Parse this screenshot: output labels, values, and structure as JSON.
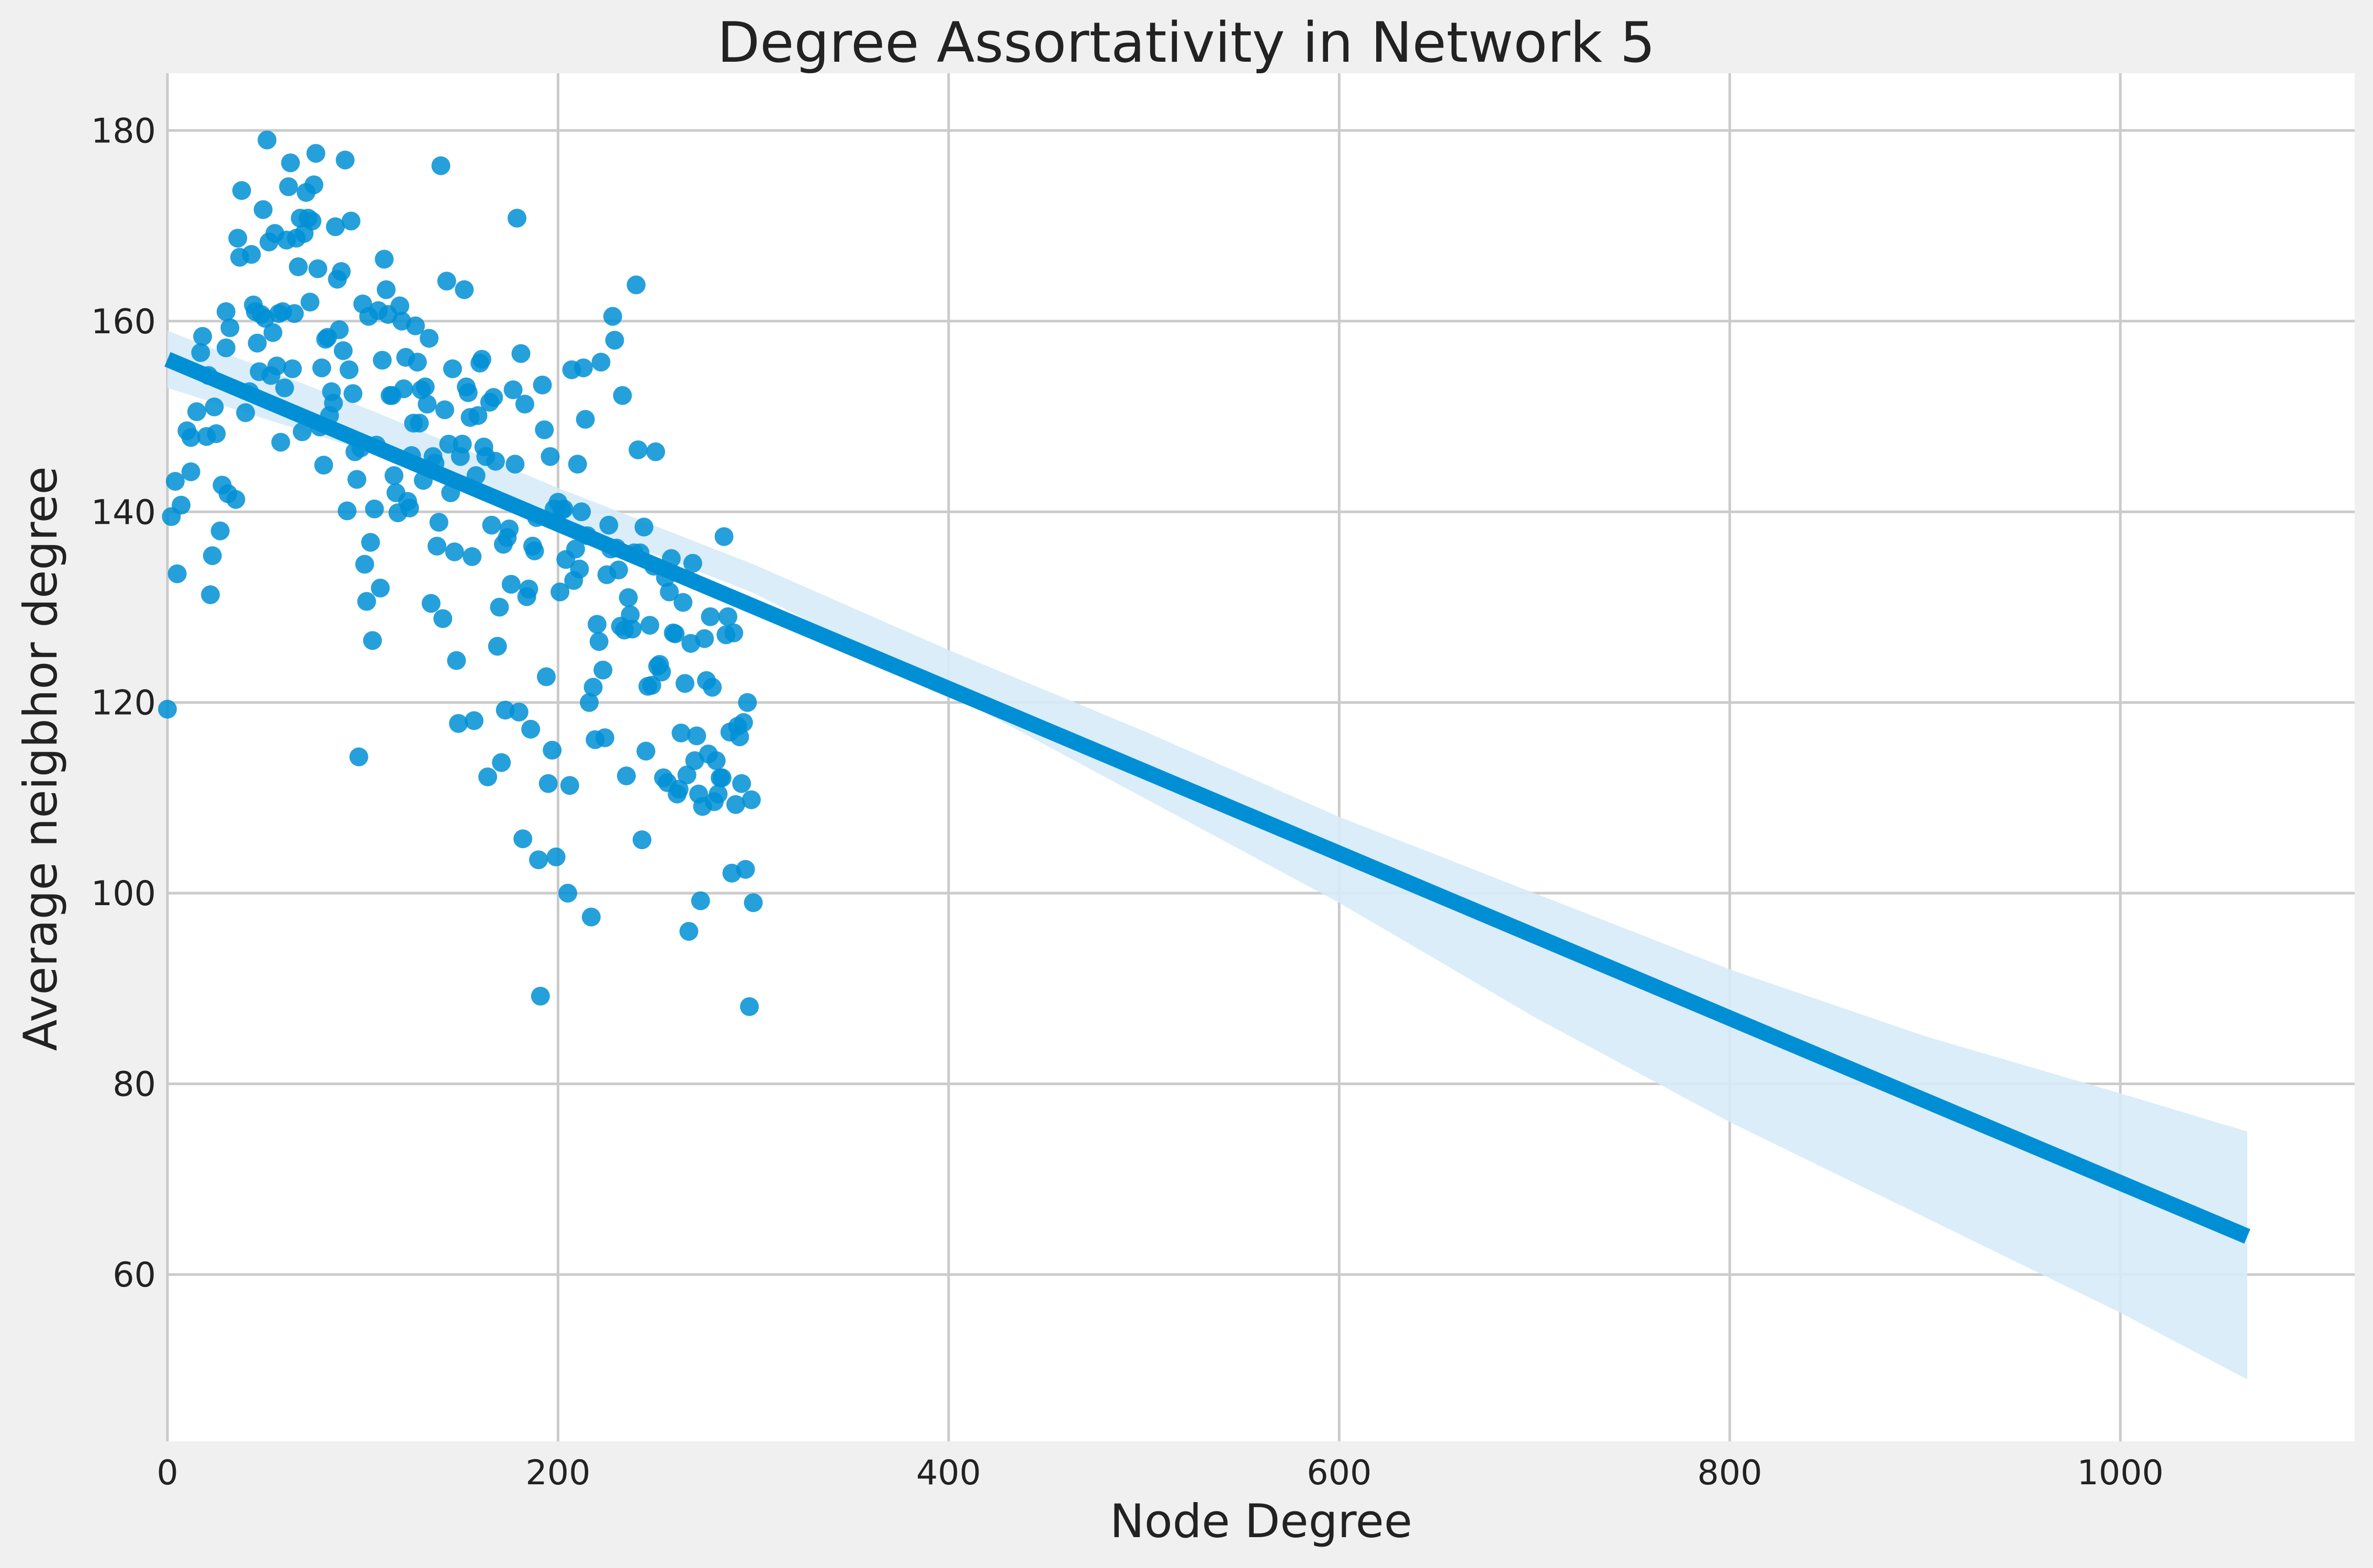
{
  "chart_data": {
    "type": "scatter",
    "title": "Degree Assortativity in Network 5",
    "xlabel": "Node Degree",
    "ylabel": "Average neigbhor degree",
    "xlim": [
      0,
      1120
    ],
    "ylim": [
      42.5,
      186
    ],
    "xticks": [
      0,
      200,
      400,
      600,
      800,
      1000
    ],
    "yticks": [
      60,
      80,
      100,
      120,
      140,
      160,
      180
    ],
    "grid": true,
    "legend": "none",
    "colors": {
      "points": "#008fd5",
      "line": "#008fd5",
      "band": "#d6ebf7",
      "background": "#f0f0f0",
      "plot_background": "#ffffff",
      "grid": "#cbcbcb"
    },
    "regression": {
      "x": [
        0,
        1065
      ],
      "y": [
        156,
        64
      ],
      "ci_upper": [
        [
          0,
          159
        ],
        [
          100,
          151
        ],
        [
          200,
          142.5
        ],
        [
          300,
          134.5
        ],
        [
          400,
          125.5
        ],
        [
          500,
          117
        ],
        [
          600,
          108
        ],
        [
          700,
          100
        ],
        [
          800,
          92
        ],
        [
          900,
          85
        ],
        [
          1000,
          79
        ],
        [
          1065,
          75
        ]
      ],
      "ci_lower": [
        [
          0,
          153
        ],
        [
          100,
          146.5
        ],
        [
          200,
          139.5
        ],
        [
          300,
          131.5
        ],
        [
          400,
          121
        ],
        [
          500,
          110
        ],
        [
          600,
          99
        ],
        [
          700,
          87
        ],
        [
          800,
          76
        ],
        [
          900,
          66
        ],
        [
          1000,
          56
        ],
        [
          1065,
          49
        ]
      ]
    },
    "points": [
      [
        0,
        119.3
      ],
      [
        2,
        139.5
      ],
      [
        4,
        143.2
      ],
      [
        5,
        133.5
      ],
      [
        7,
        140.7
      ],
      [
        10,
        148.5
      ],
      [
        12,
        144.2
      ],
      [
        12,
        147.8
      ],
      [
        15,
        150.5
      ],
      [
        17,
        156.7
      ],
      [
        18,
        158.4
      ],
      [
        20,
        147.9
      ],
      [
        21,
        154.3
      ],
      [
        22,
        131.3
      ],
      [
        23,
        135.4
      ],
      [
        24,
        151
      ],
      [
        25,
        148.2
      ],
      [
        27,
        138
      ],
      [
        28,
        142.8
      ],
      [
        30,
        157.2
      ],
      [
        30,
        161
      ],
      [
        31,
        141.9
      ],
      [
        32,
        159.3
      ],
      [
        35,
        141.3
      ],
      [
        36,
        168.7
      ],
      [
        37,
        166.7
      ],
      [
        38,
        173.7
      ],
      [
        40,
        150.4
      ],
      [
        42,
        152.6
      ],
      [
        43,
        167
      ],
      [
        44,
        161.7
      ],
      [
        45,
        161
      ],
      [
        46,
        157.7
      ],
      [
        47,
        154.7
      ],
      [
        48,
        160.7
      ],
      [
        49,
        171.7
      ],
      [
        50,
        160.3
      ],
      [
        51,
        179
      ],
      [
        52,
        168.3
      ],
      [
        53,
        154.3
      ],
      [
        54,
        158.8
      ],
      [
        55,
        169.2
      ],
      [
        56,
        155.3
      ],
      [
        57,
        160.8
      ],
      [
        58,
        147.3
      ],
      [
        59,
        161
      ],
      [
        60,
        153
      ],
      [
        61,
        168.5
      ],
      [
        62,
        174.1
      ],
      [
        63,
        176.6
      ],
      [
        64,
        155
      ],
      [
        65,
        160.8
      ],
      [
        66,
        168.7
      ],
      [
        67,
        165.7
      ],
      [
        68,
        170.8
      ],
      [
        69,
        148.4
      ],
      [
        70,
        169.2
      ],
      [
        71,
        173.5
      ],
      [
        72,
        170.8
      ],
      [
        73,
        162
      ],
      [
        74,
        170.5
      ],
      [
        75,
        174.3
      ],
      [
        76,
        177.6
      ],
      [
        77,
        165.5
      ],
      [
        78,
        148.9
      ],
      [
        79,
        155.1
      ],
      [
        80,
        144.9
      ],
      [
        81,
        158.1
      ],
      [
        82,
        158.3
      ],
      [
        83,
        150.1
      ],
      [
        84,
        152.6
      ],
      [
        85,
        151.4
      ],
      [
        86,
        169.9
      ],
      [
        87,
        164.4
      ],
      [
        88,
        159.1
      ],
      [
        89,
        165.2
      ],
      [
        90,
        156.9
      ],
      [
        91,
        176.9
      ],
      [
        92,
        140.1
      ],
      [
        93,
        154.9
      ],
      [
        94,
        170.5
      ],
      [
        95,
        152.4
      ],
      [
        96,
        146.3
      ],
      [
        97,
        143.4
      ],
      [
        98,
        114.3
      ],
      [
        99,
        146.7
      ],
      [
        100,
        161.8
      ],
      [
        101,
        134.5
      ],
      [
        102,
        130.6
      ],
      [
        103,
        160.5
      ],
      [
        104,
        136.8
      ],
      [
        105,
        126.5
      ],
      [
        106,
        140.3
      ],
      [
        107,
        147
      ],
      [
        108,
        161.1
      ],
      [
        109,
        132
      ],
      [
        110,
        155.9
      ],
      [
        111,
        166.5
      ],
      [
        112,
        163.3
      ],
      [
        113,
        160.7
      ],
      [
        114,
        152.2
      ],
      [
        115,
        152.2
      ],
      [
        116,
        143.8
      ],
      [
        117,
        142
      ],
      [
        118,
        139.9
      ],
      [
        119,
        161.6
      ],
      [
        120,
        160
      ],
      [
        121,
        152.9
      ],
      [
        122,
        156.2
      ],
      [
        123,
        141.1
      ],
      [
        124,
        140.4
      ],
      [
        125,
        145.9
      ],
      [
        126,
        149.3
      ],
      [
        127,
        159.5
      ],
      [
        128,
        155.7
      ],
      [
        129,
        149.3
      ],
      [
        130,
        152.8
      ],
      [
        131,
        143.3
      ],
      [
        132,
        153.1
      ],
      [
        133,
        151.3
      ],
      [
        134,
        158.2
      ],
      [
        135,
        130.4
      ],
      [
        136,
        145.8
      ],
      [
        137,
        145.1
      ],
      [
        138,
        136.4
      ],
      [
        139,
        138.9
      ],
      [
        140,
        176.3
      ],
      [
        141,
        128.8
      ],
      [
        142,
        150.7
      ],
      [
        143,
        164.2
      ],
      [
        144,
        147.1
      ],
      [
        145,
        142
      ],
      [
        146,
        155
      ],
      [
        147,
        135.8
      ],
      [
        148,
        124.4
      ],
      [
        149,
        117.8
      ],
      [
        150,
        145.8
      ],
      [
        151,
        147.1
      ],
      [
        152,
        163.3
      ],
      [
        153,
        153.1
      ],
      [
        154,
        152.5
      ],
      [
        155,
        149.9
      ],
      [
        156,
        135.3
      ],
      [
        157,
        118.1
      ],
      [
        158,
        143.8
      ],
      [
        159,
        150.1
      ],
      [
        160,
        155.6
      ],
      [
        161,
        156
      ],
      [
        162,
        146.8
      ],
      [
        163,
        145.8
      ],
      [
        164,
        112.2
      ],
      [
        165,
        151.5
      ],
      [
        166,
        138.6
      ],
      [
        167,
        152
      ],
      [
        168,
        145.3
      ],
      [
        169,
        125.9
      ],
      [
        170,
        130
      ],
      [
        171,
        113.7
      ],
      [
        172,
        136.6
      ],
      [
        173,
        119.2
      ],
      [
        174,
        137.3
      ],
      [
        175,
        138.2
      ],
      [
        176,
        132.4
      ],
      [
        177,
        152.8
      ],
      [
        178,
        145
      ],
      [
        179,
        170.8
      ],
      [
        180,
        119
      ],
      [
        181,
        156.6
      ],
      [
        182,
        105.7
      ],
      [
        183,
        151.3
      ],
      [
        184,
        131.1
      ],
      [
        185,
        131.9
      ],
      [
        186,
        117.2
      ],
      [
        187,
        136.4
      ],
      [
        188,
        135.9
      ],
      [
        189,
        139.4
      ],
      [
        190,
        103.5
      ],
      [
        191,
        89.2
      ],
      [
        192,
        153.3
      ],
      [
        193,
        148.6
      ],
      [
        194,
        122.7
      ],
      [
        195,
        111.5
      ],
      [
        196,
        145.8
      ],
      [
        197,
        115
      ],
      [
        198,
        140.3
      ],
      [
        199,
        103.8
      ],
      [
        200,
        141
      ],
      [
        201,
        131.6
      ],
      [
        202,
        140.2
      ],
      [
        203,
        140.3
      ],
      [
        204,
        135
      ],
      [
        205,
        100
      ],
      [
        206,
        111.3
      ],
      [
        207,
        154.9
      ],
      [
        208,
        132.8
      ],
      [
        209,
        136.1
      ],
      [
        210,
        145
      ],
      [
        211,
        134
      ],
      [
        212,
        140
      ],
      [
        213,
        155.1
      ],
      [
        214,
        149.7
      ],
      [
        215,
        137.5
      ],
      [
        216,
        120
      ],
      [
        217,
        97.5
      ],
      [
        218,
        121.6
      ],
      [
        219,
        116.1
      ],
      [
        220,
        128.2
      ],
      [
        221,
        126.4
      ],
      [
        222,
        155.7
      ],
      [
        223,
        123.4
      ],
      [
        224,
        116.3
      ],
      [
        225,
        133.4
      ],
      [
        226,
        138.6
      ],
      [
        227,
        136.1
      ],
      [
        228,
        160.5
      ],
      [
        229,
        158
      ],
      [
        230,
        136.2
      ],
      [
        231,
        133.9
      ],
      [
        232,
        128
      ],
      [
        233,
        152.2
      ],
      [
        234,
        127.6
      ],
      [
        235,
        112.3
      ],
      [
        236,
        131
      ],
      [
        237,
        129.2
      ],
      [
        238,
        127.7
      ],
      [
        239,
        135.7
      ],
      [
        240,
        163.8
      ],
      [
        241,
        146.5
      ],
      [
        242,
        135.7
      ],
      [
        243,
        105.6
      ],
      [
        244,
        138.4
      ],
      [
        245,
        114.9
      ],
      [
        246,
        121.7
      ],
      [
        247,
        128.1
      ],
      [
        248,
        121.8
      ],
      [
        249,
        134.3
      ],
      [
        250,
        146.3
      ],
      [
        251,
        123.8
      ],
      [
        252,
        124
      ],
      [
        253,
        123.2
      ],
      [
        254,
        112.1
      ],
      [
        255,
        133.1
      ],
      [
        256,
        111.6
      ],
      [
        257,
        131.6
      ],
      [
        258,
        135.1
      ],
      [
        259,
        127.3
      ],
      [
        260,
        127.2
      ],
      [
        261,
        110.4
      ],
      [
        262,
        110.9
      ],
      [
        263,
        116.8
      ],
      [
        264,
        130.5
      ],
      [
        265,
        122
      ],
      [
        266,
        112.4
      ],
      [
        267,
        96
      ],
      [
        268,
        126.2
      ],
      [
        269,
        134.6
      ],
      [
        270,
        113.9
      ],
      [
        271,
        116.5
      ],
      [
        272,
        110.4
      ],
      [
        273,
        99.2
      ],
      [
        274,
        109.1
      ],
      [
        275,
        126.7
      ],
      [
        276,
        122.3
      ],
      [
        277,
        114.6
      ],
      [
        278,
        129
      ],
      [
        279,
        121.6
      ],
      [
        280,
        109.6
      ],
      [
        281,
        113.9
      ],
      [
        282,
        110.4
      ],
      [
        283,
        112.1
      ],
      [
        284,
        112.1
      ],
      [
        285,
        137.4
      ],
      [
        286,
        127.1
      ],
      [
        287,
        129
      ],
      [
        288,
        116.9
      ],
      [
        289,
        102.1
      ],
      [
        290,
        127.3
      ],
      [
        291,
        109.3
      ],
      [
        292,
        117.5
      ],
      [
        293,
        116.4
      ],
      [
        294,
        111.5
      ],
      [
        295,
        117.9
      ],
      [
        296,
        102.5
      ],
      [
        297,
        120
      ],
      [
        298,
        88.1
      ],
      [
        299,
        109.8
      ],
      [
        300,
        99
      ]
    ]
  }
}
